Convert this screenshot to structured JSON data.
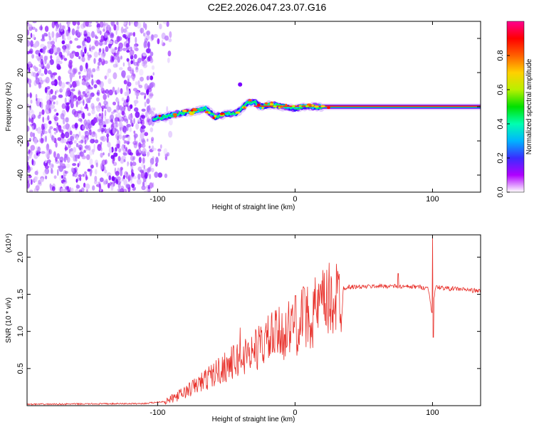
{
  "title": "C2E2.2026.047.23.07.G16",
  "chart_data": [
    {
      "type": "heatmap",
      "name": "spectrogram",
      "xlabel": "Height of straight line (km)",
      "ylabel": "Frequency (Hz)",
      "xlim": [
        -195,
        135
      ],
      "ylim": [
        -50,
        50
      ],
      "xticks": [
        -100,
        0,
        100
      ],
      "yticks": [
        -40,
        -20,
        0,
        20,
        40
      ],
      "noise_region_x": [
        -195,
        -103
      ],
      "signal_track": {
        "x": [
          -103,
          -95,
          -85,
          -75,
          -65,
          -58,
          -50,
          -44,
          -40,
          -35,
          -30,
          -25,
          -20,
          -15,
          -10,
          -5,
          0,
          5,
          10,
          20,
          40,
          60,
          80,
          100,
          135
        ],
        "freq": [
          -7,
          -6,
          -4,
          -3,
          -1,
          -6,
          -4,
          -4,
          -2,
          2,
          3,
          0,
          1,
          1,
          0,
          0,
          -1,
          0,
          0,
          0,
          0,
          0,
          0,
          0,
          0
        ]
      },
      "colorbar": {
        "label": "Normalized spectral amplitude",
        "range": [
          0,
          1
        ],
        "ticks": [
          "0.0",
          "0.2",
          "0.4",
          "0.6",
          "0.8"
        ],
        "colors": [
          "#ffffff",
          "#b000ff",
          "#3a2cff",
          "#00b4ff",
          "#00ffb0",
          "#00e000",
          "#b8f000",
          "#ffd000",
          "#ff6000",
          "#ff0000",
          "#ff0090"
        ]
      }
    },
    {
      "type": "line",
      "name": "snr",
      "xlabel": "Height of straight line (km)",
      "ylabel": "SNR (10 * v/v)",
      "yscale_label": "(x10⁴)",
      "xlim": [
        -195,
        135
      ],
      "ylim": [
        0,
        2.3
      ],
      "xticks": [
        -100,
        0,
        100
      ],
      "yticks": [
        "0.5",
        "1.0",
        "1.5",
        "2.0"
      ],
      "color": "#e8302a",
      "envelope": {
        "x": [
          -195,
          -110,
          -95,
          -90,
          -80,
          -70,
          -60,
          -50,
          -40,
          -30,
          -20,
          -10,
          0,
          10,
          20,
          30,
          40,
          50,
          60,
          70,
          80,
          90,
          97,
          100,
          102,
          110,
          120,
          135
        ],
        "y": [
          0.02,
          0.03,
          0.06,
          0.1,
          0.2,
          0.32,
          0.45,
          0.58,
          0.68,
          0.8,
          0.95,
          1.05,
          1.15,
          1.3,
          1.45,
          1.57,
          1.6,
          1.6,
          1.61,
          1.61,
          1.6,
          1.6,
          1.58,
          1.2,
          1.6,
          1.58,
          1.57,
          1.54
        ]
      },
      "spikes": [
        {
          "x": -40,
          "y": 1.05
        },
        {
          "x": -34,
          "y": 0.85
        },
        {
          "x": 6,
          "y": 1.6
        },
        {
          "x": 0,
          "y": 1.48
        },
        {
          "x": 100,
          "y": 2.3
        },
        {
          "x": 100.5,
          "y": 0.92
        },
        {
          "x": 75,
          "y": 1.78
        }
      ]
    }
  ]
}
